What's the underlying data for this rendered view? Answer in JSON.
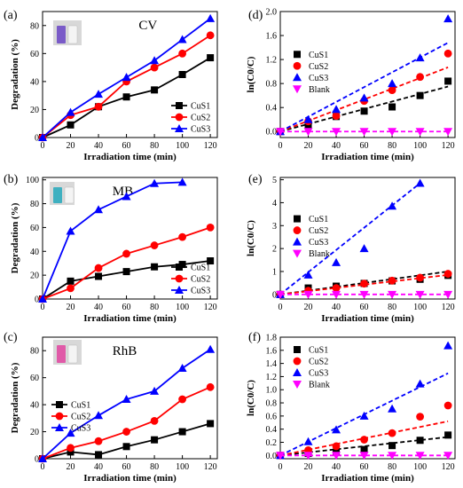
{
  "colors": {
    "CuS1": "#000000",
    "CuS2": "#ff0000",
    "CuS3": "#0000ff",
    "Blank": "#ff00ff",
    "axis": "#000000",
    "inset_bg": "#d8d8d8"
  },
  "chart_data": [
    {
      "id": "a",
      "panel_label": "(a)",
      "type": "line",
      "title": "CV",
      "xlabel": "Irradiation time (min)",
      "ylabel": "Degradation (%)",
      "xlim": [
        0,
        125
      ],
      "ylim": [
        0,
        90
      ],
      "xticks": [
        0,
        20,
        40,
        60,
        80,
        100,
        120
      ],
      "yticks": [
        0,
        20,
        40,
        60,
        80
      ],
      "x": [
        0,
        20,
        40,
        60,
        80,
        100,
        120
      ],
      "legend_position": "lower-right",
      "inset": "photo of dye solution vials (purple)",
      "series": [
        {
          "name": "CuS1",
          "values": [
            0,
            9,
            22,
            29,
            34,
            45,
            57
          ]
        },
        {
          "name": "CuS2",
          "values": [
            0,
            16,
            22,
            40,
            50,
            60,
            73
          ]
        },
        {
          "name": "CuS3",
          "values": [
            0,
            18,
            31,
            43,
            55,
            70,
            85
          ]
        }
      ]
    },
    {
      "id": "d",
      "panel_label": "(d)",
      "type": "scatter",
      "xlabel": "Irradiation time (min)",
      "ylabel": "ln(C0/C)",
      "xlim": [
        0,
        125
      ],
      "ylim": [
        -0.1,
        2.0
      ],
      "xticks": [
        0,
        20,
        40,
        60,
        80,
        100,
        120
      ],
      "yticks": [
        0.0,
        0.4,
        0.8,
        1.2,
        1.6,
        2.0
      ],
      "ytick_labels": [
        "0.0",
        "0.4",
        "0.8",
        "1.2",
        "1.6",
        "2.0"
      ],
      "x": [
        0,
        20,
        40,
        60,
        80,
        100,
        120
      ],
      "legend_position": "center-left",
      "series": [
        {
          "name": "CuS1",
          "values": [
            0,
            0.09,
            0.25,
            0.34,
            0.41,
            0.6,
            0.84
          ],
          "fit": [
            0,
            0.75
          ]
        },
        {
          "name": "CuS2",
          "values": [
            0,
            0.17,
            0.26,
            0.51,
            0.69,
            0.91,
            1.3
          ],
          "fit": [
            0,
            1.07
          ]
        },
        {
          "name": "CuS3",
          "values": [
            0,
            0.2,
            0.37,
            0.56,
            0.8,
            1.23,
            1.88
          ],
          "fit": [
            0,
            1.48
          ]
        },
        {
          "name": "Blank",
          "values": [
            0,
            0.0,
            0.0,
            0.0,
            0.0,
            0.0,
            0.0
          ],
          "fit": [
            0,
            0.0
          ]
        }
      ]
    },
    {
      "id": "b",
      "panel_label": "(b)",
      "type": "line",
      "title": "MB",
      "xlabel": "Irradiation time (min)",
      "ylabel": "Degradation (%)",
      "xlim": [
        0,
        125
      ],
      "ylim": [
        0,
        102
      ],
      "xticks": [
        0,
        20,
        40,
        60,
        80,
        100,
        120
      ],
      "yticks": [
        0,
        20,
        40,
        60,
        80,
        100
      ],
      "legend_position": "lower-right",
      "inset": "photo of dye solution vials (blue)",
      "series": [
        {
          "name": "CuS1",
          "x": [
            0,
            20,
            40,
            60,
            80,
            100,
            120
          ],
          "values": [
            0,
            15,
            19,
            23,
            27,
            29,
            32
          ]
        },
        {
          "name": "CuS2",
          "x": [
            0,
            20,
            40,
            60,
            80,
            100,
            120
          ],
          "values": [
            0,
            9,
            26,
            38,
            45,
            52,
            60
          ]
        },
        {
          "name": "CuS3",
          "x": [
            0,
            20,
            40,
            60,
            80,
            100
          ],
          "values": [
            0,
            57,
            75,
            86,
            97,
            98
          ]
        }
      ]
    },
    {
      "id": "e",
      "panel_label": "(e)",
      "type": "scatter",
      "xlabel": "Irradiation time (min)",
      "ylabel": "ln(C0/C)",
      "xlim": [
        0,
        125
      ],
      "ylim": [
        -0.2,
        5.1
      ],
      "xticks": [
        0,
        20,
        40,
        60,
        80,
        100,
        120
      ],
      "yticks": [
        0,
        1,
        2,
        3,
        4,
        5
      ],
      "ytick_labels": [
        "0",
        "1",
        "2",
        "3",
        "4",
        "5"
      ],
      "x": [
        0,
        20,
        40,
        60,
        80,
        100,
        120
      ],
      "legend_position": "center-left",
      "series": [
        {
          "name": "CuS1",
          "values": [
            0,
            0.28,
            0.36,
            0.48,
            0.59,
            0.66,
            0.83
          ],
          "fit": [
            0,
            1.0
          ],
          "fit_xmax": 120
        },
        {
          "name": "CuS2",
          "values": [
            0,
            0.16,
            0.28,
            0.47,
            0.6,
            0.73,
            0.9
          ],
          "fit": [
            0,
            0.85
          ],
          "fit_xmax": 120
        },
        {
          "name": "CuS3",
          "x": [
            0,
            20,
            40,
            60,
            80,
            100
          ],
          "values": [
            0,
            0.85,
            1.39,
            2.0,
            3.85,
            4.85
          ],
          "fit": [
            0,
            4.85
          ],
          "fit_xmax": 100
        },
        {
          "name": "Blank",
          "values": [
            0,
            0,
            0,
            0,
            0,
            0,
            0
          ],
          "fit": [
            0,
            0.0
          ],
          "fit_xmax": 120
        }
      ]
    },
    {
      "id": "c",
      "panel_label": "(c)",
      "type": "line",
      "title": "RhB",
      "xlabel": "Irradiation time (min)",
      "ylabel": "Degradation (%)",
      "xlim": [
        0,
        125
      ],
      "ylim": [
        0,
        90
      ],
      "xticks": [
        0,
        20,
        40,
        60,
        80,
        100,
        120
      ],
      "yticks": [
        0,
        20,
        40,
        60,
        80
      ],
      "x": [
        0,
        20,
        40,
        60,
        80,
        100,
        120
      ],
      "legend_position": "upper-left",
      "inset": "photo of dye solution vials (pink)",
      "series": [
        {
          "name": "CuS1",
          "values": [
            0,
            5,
            3,
            9,
            14,
            20,
            26
          ]
        },
        {
          "name": "CuS2",
          "values": [
            0,
            8,
            13,
            20,
            28,
            44,
            53
          ]
        },
        {
          "name": "CuS3",
          "values": [
            0,
            19,
            32,
            44,
            50,
            67,
            81
          ]
        }
      ]
    },
    {
      "id": "f",
      "panel_label": "(f)",
      "type": "scatter",
      "xlabel": "Irradiation time (min)",
      "ylabel": "ln(C0/C)",
      "xlim": [
        0,
        125
      ],
      "ylim": [
        -0.05,
        1.8
      ],
      "xticks": [
        0,
        20,
        40,
        60,
        80,
        100,
        120
      ],
      "yticks": [
        0.0,
        0.2,
        0.4,
        0.6,
        0.8,
        1.0,
        1.2,
        1.4,
        1.6,
        1.8
      ],
      "ytick_labels": [
        "0.0",
        "0.2",
        "0.4",
        "0.6",
        "0.8",
        "1.0",
        "1.2",
        "1.4",
        "1.6",
        "1.8"
      ],
      "x": [
        0,
        20,
        40,
        60,
        80,
        100,
        120
      ],
      "legend_position": "upper-left",
      "series": [
        {
          "name": "CuS1",
          "values": [
            0,
            0.03,
            0.05,
            0.09,
            0.15,
            0.23,
            0.31
          ],
          "fit": [
            0,
            0.28
          ]
        },
        {
          "name": "CuS2",
          "values": [
            0,
            0.08,
            0.14,
            0.24,
            0.34,
            0.59,
            0.76
          ],
          "fit": [
            0,
            0.52
          ]
        },
        {
          "name": "CuS3",
          "values": [
            0,
            0.21,
            0.39,
            0.6,
            0.71,
            1.09,
            1.67
          ],
          "fit": [
            0,
            1.25
          ]
        },
        {
          "name": "Blank",
          "values": [
            0,
            0,
            0,
            0,
            0,
            0,
            0
          ],
          "fit": [
            0,
            0.0
          ]
        }
      ]
    }
  ]
}
